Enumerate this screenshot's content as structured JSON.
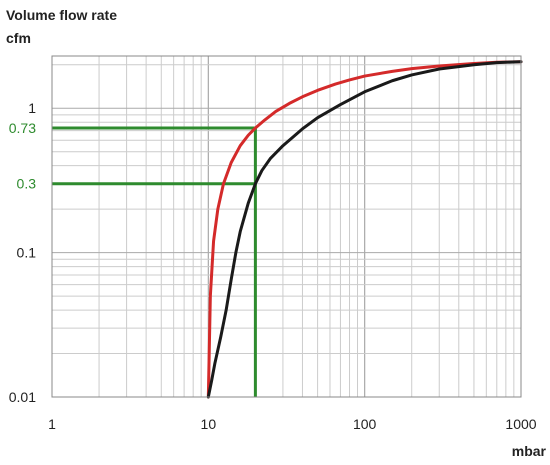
{
  "chart_data": {
    "type": "line",
    "title": "",
    "ylabel_line1": "Volume flow rate",
    "ylabel_line2": "cfm",
    "xlabel": "mbar",
    "xscale": "log",
    "yscale": "log",
    "xlim": [
      1,
      1000
    ],
    "ylim": [
      0.01,
      2.3
    ],
    "grid": true,
    "x_ticks": [
      {
        "value": 1,
        "label": "1"
      },
      {
        "value": 10,
        "label": "10"
      },
      {
        "value": 100,
        "label": "100"
      },
      {
        "value": 1000,
        "label": "1000"
      }
    ],
    "y_ticks": [
      {
        "value": 0.01,
        "label": "0.01"
      },
      {
        "value": 0.1,
        "label": "0.1"
      },
      {
        "value": 1,
        "label": "1"
      }
    ],
    "annotation_ticks": [
      {
        "value": 0.73,
        "label": "0.73"
      },
      {
        "value": 0.3,
        "label": "0.3"
      }
    ],
    "series": [
      {
        "color": "#d42a2a",
        "x": [
          10,
          10.3,
          10.8,
          11.5,
          12.5,
          14,
          16,
          18,
          20,
          23,
          27,
          33,
          40,
          50,
          65,
          80,
          100,
          150,
          200,
          300,
          500,
          700,
          1000
        ],
        "y": [
          0.01,
          0.05,
          0.12,
          0.2,
          0.3,
          0.42,
          0.55,
          0.65,
          0.73,
          0.83,
          0.95,
          1.08,
          1.2,
          1.33,
          1.47,
          1.57,
          1.67,
          1.8,
          1.88,
          1.96,
          2.04,
          2.08,
          2.1
        ]
      },
      {
        "color": "#1a1a1a",
        "x": [
          10,
          10.5,
          11,
          12,
          13,
          14,
          15,
          16,
          18,
          20,
          22,
          25,
          30,
          40,
          50,
          70,
          100,
          150,
          200,
          300,
          500,
          700,
          1000
        ],
        "y": [
          0.01,
          0.013,
          0.017,
          0.026,
          0.04,
          0.065,
          0.1,
          0.14,
          0.22,
          0.3,
          0.37,
          0.45,
          0.55,
          0.72,
          0.86,
          1.06,
          1.3,
          1.55,
          1.7,
          1.87,
          2.0,
          2.07,
          2.1
        ]
      }
    ],
    "guide_color": "#2e8b2e",
    "guide_lines": [
      {
        "x": 20,
        "y": 0.73
      },
      {
        "x": 20,
        "y": 0.3
      }
    ]
  }
}
